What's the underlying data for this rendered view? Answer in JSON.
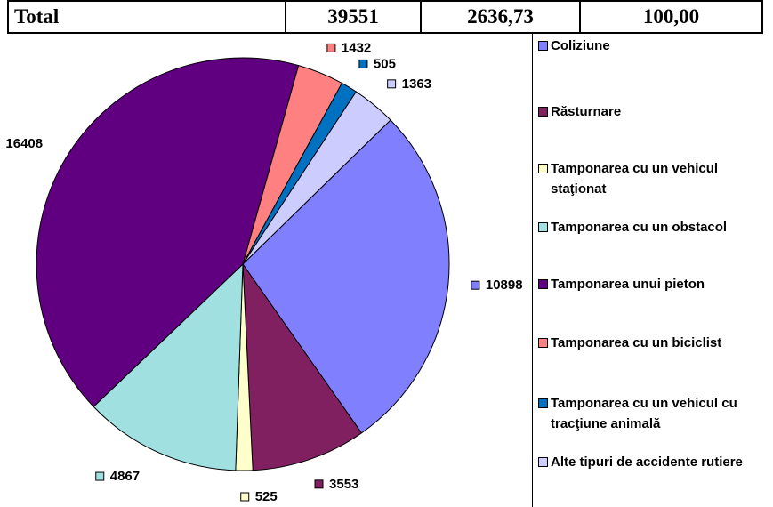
{
  "table": {
    "cells": [
      "Total",
      "39551",
      "2636,73",
      "100,00"
    ]
  },
  "chart_data": {
    "type": "pie",
    "categories": [
      "Coliziune",
      "Răsturnare",
      "Tamponarea cu un vehicul staţionat",
      "Tamponarea cu un obstacol",
      "Tamponarea unui pieton",
      "Tamponarea cu un biciclist",
      "Tamponarea cu un vehicul cu tracţiune animală",
      "Alte tipuri de accidente rutiere"
    ],
    "values": [
      10898,
      3553,
      525,
      4867,
      16408,
      1432,
      505,
      1363
    ],
    "colors": [
      "#8080ff",
      "#802060",
      "#ffffcc",
      "#a0e0e0",
      "#600080",
      "#ff8080",
      "#0070c0",
      "#ccccff"
    ]
  }
}
